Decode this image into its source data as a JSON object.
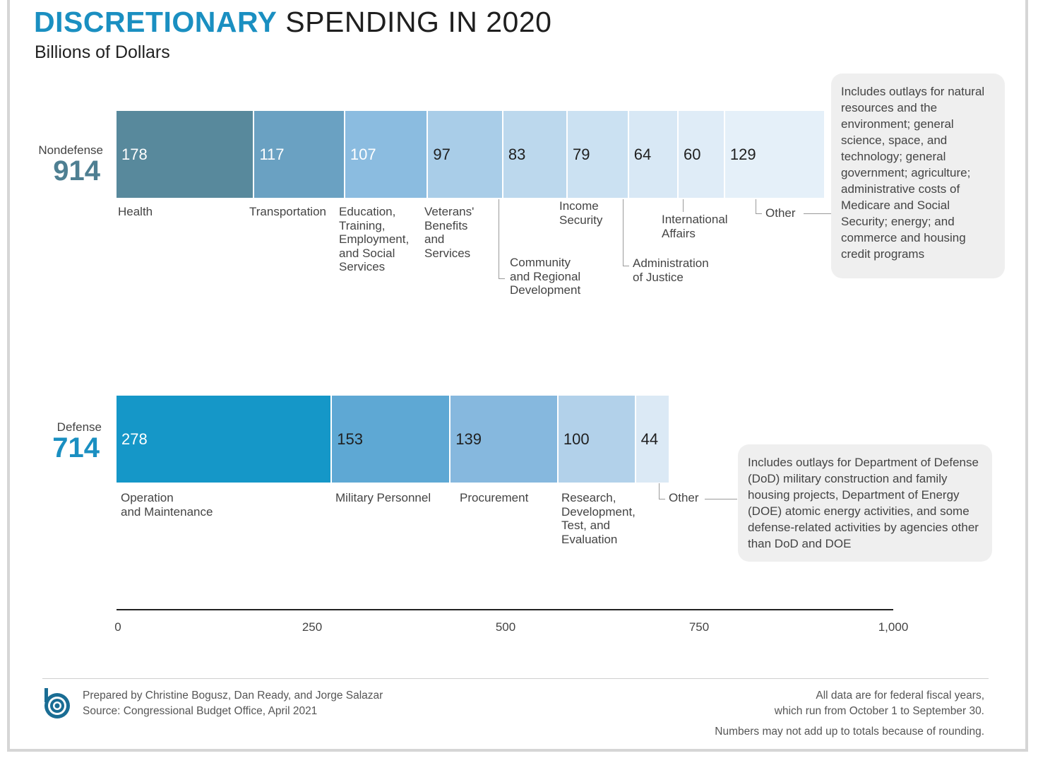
{
  "title": {
    "highlight": "DISCRETIONARY",
    "rest": "SPENDING IN 2020"
  },
  "subtitle": "Billions of Dollars",
  "colors": {
    "accent": "#1a8fc1",
    "nondefense_total": "#4e7f92",
    "defense_total": "#1a8fc1"
  },
  "axis": {
    "ticks": [
      "0",
      "250",
      "500",
      "750",
      "1,000"
    ]
  },
  "chart_data": {
    "type": "bar",
    "orientation": "horizontal",
    "stacked": true,
    "title": "DISCRETIONARY SPENDING IN 2020",
    "subtitle": "Billions of Dollars",
    "xlim": [
      0,
      1000
    ],
    "x_ticks": [
      "0",
      "250",
      "500",
      "750",
      "1,000"
    ],
    "groups": [
      {
        "name": "Nondefense",
        "total": "914",
        "segments": [
          {
            "label": "Health",
            "value": 178,
            "display": "178",
            "color": "#58899c"
          },
          {
            "label": "Transportation",
            "value": 117,
            "display": "117",
            "color": "#6aa1c2"
          },
          {
            "label": "Education,\nTraining,\nEmployment,\nand Social\nServices",
            "value": 107,
            "display": "107",
            "color": "#8bbce0"
          },
          {
            "label": "Veterans'\nBenefits\nand\nServices",
            "value": 97,
            "display": "97",
            "color": "#a9cde8"
          },
          {
            "label": "Community\nand Regional\nDevelopment",
            "value": 83,
            "display": "83",
            "color": "#bcd8ed"
          },
          {
            "label": "Income\nSecurity",
            "value": 79,
            "display": "79",
            "color": "#cbe1f2"
          },
          {
            "label": "Administration\nof Justice",
            "value": 64,
            "display": "64",
            "color": "#d8e8f5"
          },
          {
            "label": "International\nAffairs",
            "value": 60,
            "display": "60",
            "color": "#dfecf7"
          },
          {
            "label": "Other",
            "value": 129,
            "display": "129",
            "color": "#e5f0f9"
          }
        ],
        "note": "Includes outlays for natural resources and the environment; general science, space, and technology; general government; agriculture; administrative costs of Medicare and Social Security; energy; and commerce and housing credit programs"
      },
      {
        "name": "Defense",
        "total": "714",
        "segments": [
          {
            "label": "Operation\nand Maintenance",
            "value": 278,
            "display": "278",
            "color": "#1597c8"
          },
          {
            "label": "Military Personnel",
            "value": 153,
            "display": "153",
            "color": "#5ea8d4"
          },
          {
            "label": "Procurement",
            "value": 139,
            "display": "139",
            "color": "#86b8de"
          },
          {
            "label": "Research,\nDevelopment,\nTest, and\nEvaluation",
            "value": 100,
            "display": "100",
            "color": "#b2d1ea"
          },
          {
            "label": "Other",
            "value": 44,
            "display": "44",
            "color": "#dbe9f5"
          }
        ],
        "note": "Includes outlays for Department of Defense (DoD) military construction and family housing projects, Department of Energy (DOE) atomic energy activities, and some defense-related activities by agencies other than DoD and DOE"
      }
    ]
  },
  "footer": {
    "credit_line1": "Prepared by Christine Bogusz, Dan Ready, and Jorge Salazar",
    "credit_line2": "Source: Congressional Budget Office, April 2021",
    "fiscal_line1": "All data are for federal fiscal years,",
    "fiscal_line2": "which run from October 1 to September 30.",
    "rounding": "Numbers may not add up to totals because of rounding."
  }
}
